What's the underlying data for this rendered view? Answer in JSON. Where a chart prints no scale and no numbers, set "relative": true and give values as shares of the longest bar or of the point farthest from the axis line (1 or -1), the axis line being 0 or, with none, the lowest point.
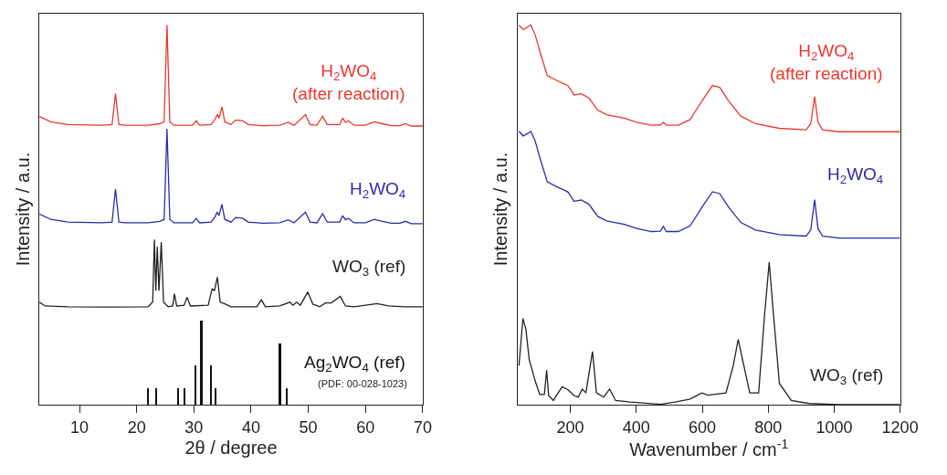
{
  "chart_data": [
    {
      "type": "line",
      "relative": true,
      "xlabel": "2θ / degree",
      "ylabel": "Intensity / a.u.",
      "xlim": [
        3,
        70
      ],
      "xticks": [
        10,
        20,
        30,
        40,
        50,
        60,
        70
      ],
      "annotations": [
        "(PDF: 00-028-1023)"
      ],
      "series": [
        {
          "name": "H$_{2}$WO$_{4}$\n(after reaction)",
          "color": "#e8382e",
          "x": [
            3,
            5,
            8,
            14,
            15.7,
            16.3,
            16.9,
            18,
            22,
            24,
            24.8,
            25.3,
            25.8,
            26.5,
            29.8,
            30.4,
            31,
            33,
            33.7,
            34.1,
            34.4,
            34.9,
            35.4,
            36.5,
            37.3,
            38.5,
            39.5,
            42,
            45,
            46.5,
            47.5,
            49.5,
            50.3,
            51.5,
            52.5,
            53.3,
            55.5,
            56,
            56.5,
            57,
            58,
            60,
            61.5,
            63,
            64.5,
            66,
            67,
            68,
            70
          ],
          "values": [
            0.759,
            0.745,
            0.738,
            0.736,
            0.738,
            0.82,
            0.738,
            0.736,
            0.736,
            0.74,
            0.745,
            1.0,
            0.745,
            0.736,
            0.736,
            0.748,
            0.736,
            0.738,
            0.752,
            0.765,
            0.755,
            0.785,
            0.745,
            0.738,
            0.75,
            0.748,
            0.738,
            0.735,
            0.736,
            0.744,
            0.736,
            0.764,
            0.738,
            0.736,
            0.76,
            0.738,
            0.738,
            0.755,
            0.744,
            0.748,
            0.736,
            0.736,
            0.745,
            0.74,
            0.735,
            0.735,
            0.74,
            0.734,
            0.734
          ]
        },
        {
          "name": "H$_{2}$WO$_{4}$",
          "color": "#2b2ba8",
          "x": [
            3,
            5,
            8,
            14,
            15.7,
            16.3,
            16.9,
            18,
            22,
            24,
            24.8,
            25.3,
            25.8,
            26.5,
            29.8,
            30.4,
            31,
            33,
            33.7,
            34.1,
            34.4,
            34.9,
            35.4,
            36.5,
            37.3,
            38.5,
            39.5,
            42,
            45,
            46.5,
            47.5,
            49.5,
            50.3,
            51.5,
            52.5,
            53.3,
            55.5,
            56,
            56.5,
            57,
            58,
            60,
            61.5,
            63,
            64.5,
            66,
            67,
            68,
            70
          ],
          "values": [
            0.502,
            0.488,
            0.481,
            0.479,
            0.481,
            0.568,
            0.481,
            0.479,
            0.479,
            0.483,
            0.488,
            0.727,
            0.488,
            0.479,
            0.479,
            0.491,
            0.479,
            0.481,
            0.495,
            0.508,
            0.498,
            0.528,
            0.488,
            0.481,
            0.493,
            0.491,
            0.481,
            0.478,
            0.479,
            0.487,
            0.479,
            0.507,
            0.481,
            0.479,
            0.503,
            0.481,
            0.481,
            0.498,
            0.487,
            0.491,
            0.479,
            0.479,
            0.488,
            0.483,
            0.478,
            0.478,
            0.483,
            0.477,
            0.477
          ]
        },
        {
          "name": "WO$_{3}$ (ref)",
          "color": "#222222",
          "x": [
            3,
            4,
            8,
            15,
            22,
            22.8,
            23.1,
            23.35,
            23.6,
            23.9,
            24.3,
            24.7,
            25.5,
            26.3,
            26.6,
            27,
            28.3,
            28.8,
            29.4,
            32.5,
            33.2,
            33.6,
            34.1,
            34.6,
            35.5,
            36.5,
            41,
            41.8,
            42.5,
            45,
            46.8,
            47.3,
            48,
            48.6,
            49.9,
            50.8,
            52,
            53,
            54,
            55.6,
            56.5,
            58,
            60,
            62,
            64,
            67,
            70
          ],
          "values": [
            0.27,
            0.26,
            0.258,
            0.257,
            0.258,
            0.27,
            0.435,
            0.3,
            0.416,
            0.3,
            0.428,
            0.27,
            0.258,
            0.26,
            0.292,
            0.26,
            0.262,
            0.283,
            0.26,
            0.262,
            0.306,
            0.3,
            0.336,
            0.27,
            0.265,
            0.258,
            0.258,
            0.276,
            0.258,
            0.26,
            0.27,
            0.262,
            0.27,
            0.262,
            0.297,
            0.265,
            0.258,
            0.268,
            0.268,
            0.285,
            0.26,
            0.258,
            0.262,
            0.266,
            0.26,
            0.258,
            0.258
          ]
        },
        {
          "name": "Ag$_{2}$WO$_{4}$ (ref)",
          "type": "bar",
          "color": "#111111",
          "x": [
            22.0,
            23.5,
            27.3,
            28.4,
            30.3,
            31.4,
            33.0,
            33.8,
            45.1,
            46.3
          ],
          "values": [
            0.044,
            0.044,
            0.044,
            0.044,
            0.103,
            0.222,
            0.103,
            0.044,
            0.161,
            0.044
          ]
        }
      ]
    },
    {
      "type": "line",
      "relative": true,
      "xlabel": "Wavenumber / cm$^{-1}$",
      "ylabel": "Intensity / a.u.",
      "xlim": [
        40,
        1200
      ],
      "xticks": [
        200,
        400,
        600,
        800,
        1000,
        1200
      ],
      "series": [
        {
          "name": "H$_{2}$WO$_{4}$\n(after reaction)",
          "color": "#e8382e",
          "x": [
            44,
            57,
            80,
            93,
            111,
            130,
            157,
            184,
            193,
            211,
            233,
            256,
            283,
            310,
            364,
            401,
            446,
            473,
            482,
            491,
            527,
            563,
            599,
            631,
            653,
            680,
            717,
            762,
            834,
            915,
            929,
            941,
            951,
            965,
            1015,
            1105,
            1200
          ],
          "values": [
            1.0,
            0.988,
            1.0,
            0.975,
            0.92,
            0.867,
            0.855,
            0.844,
            0.84,
            0.816,
            0.819,
            0.808,
            0.776,
            0.764,
            0.755,
            0.744,
            0.736,
            0.737,
            0.744,
            0.736,
            0.736,
            0.751,
            0.8,
            0.841,
            0.836,
            0.8,
            0.76,
            0.74,
            0.728,
            0.724,
            0.74,
            0.812,
            0.744,
            0.724,
            0.719,
            0.719,
            0.719
          ]
        },
        {
          "name": "H$_{2}$WO$_{4}$",
          "color": "#2b2ba8",
          "x": [
            44,
            57,
            80,
            93,
            111,
            130,
            157,
            184,
            193,
            211,
            233,
            256,
            283,
            310,
            364,
            401,
            446,
            473,
            482,
            491,
            527,
            563,
            599,
            631,
            653,
            680,
            717,
            762,
            834,
            915,
            929,
            941,
            951,
            965,
            1015,
            1105,
            1200
          ],
          "values": [
            0.72,
            0.708,
            0.72,
            0.695,
            0.64,
            0.587,
            0.575,
            0.564,
            0.56,
            0.536,
            0.539,
            0.528,
            0.496,
            0.484,
            0.475,
            0.464,
            0.456,
            0.457,
            0.47,
            0.456,
            0.456,
            0.471,
            0.52,
            0.561,
            0.556,
            0.52,
            0.48,
            0.46,
            0.448,
            0.444,
            0.46,
            0.54,
            0.464,
            0.444,
            0.439,
            0.439,
            0.439
          ]
        },
        {
          "name": "WO$_{3}$ (ref)",
          "color": "#222222",
          "x": [
            44,
            56,
            65,
            75,
            93,
            107,
            121,
            128,
            134,
            148,
            175,
            193,
            211,
            224,
            236,
            247,
            267,
            279,
            301,
            319,
            337,
            382,
            473,
            518,
            563,
            599,
            617,
            672,
            694,
            709,
            726,
            744,
            771,
            789,
            803,
            816,
            834,
            870,
            924,
            1015,
            1200
          ],
          "values": [
            0.103,
            0.227,
            0.199,
            0.119,
            0.063,
            0.027,
            0.027,
            0.091,
            0.024,
            0.011,
            0.047,
            0.039,
            0.024,
            0.02,
            0.041,
            0.031,
            0.14,
            0.031,
            0.02,
            0.041,
            0.011,
            0.007,
            0.001,
            0.007,
            0.015,
            0.031,
            0.025,
            0.031,
            0.103,
            0.172,
            0.103,
            0.031,
            0.031,
            0.237,
            0.375,
            0.237,
            0.056,
            0.011,
            0.003,
            0.0,
            0.0
          ]
        }
      ]
    }
  ]
}
